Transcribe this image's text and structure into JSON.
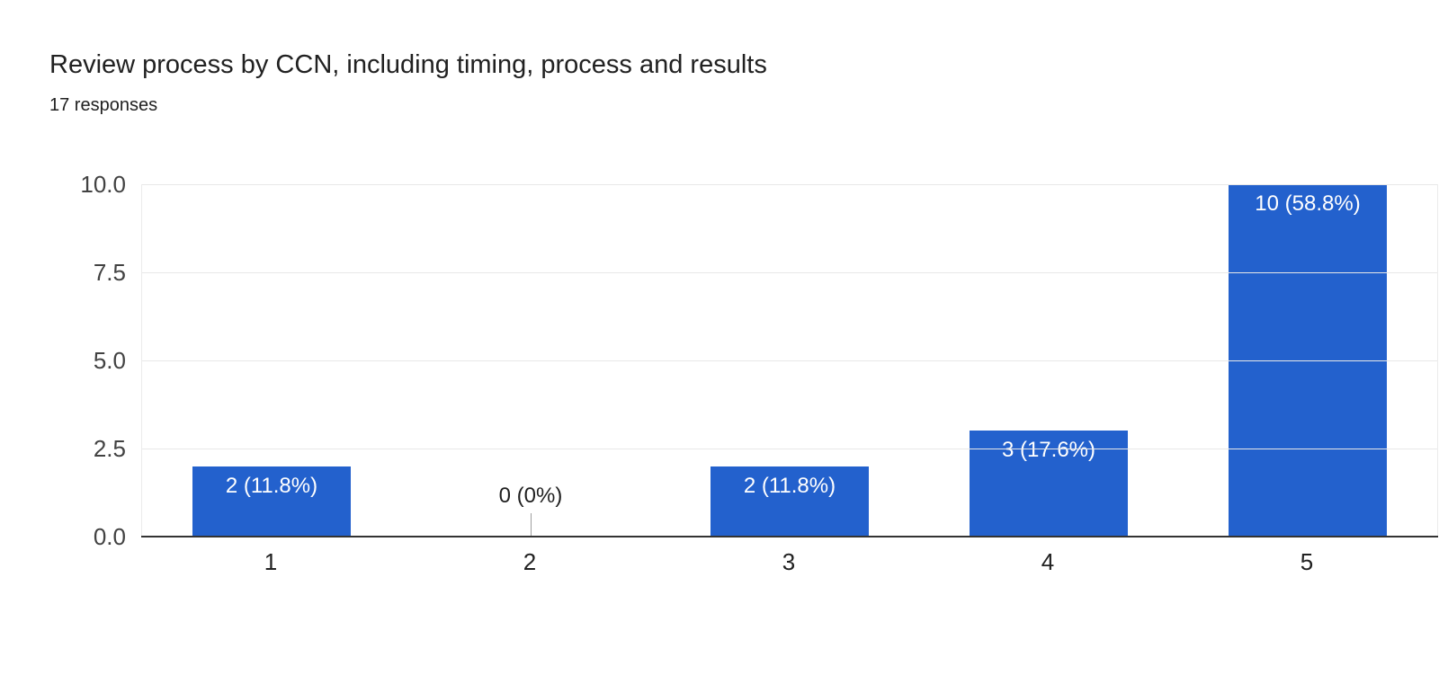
{
  "header": {
    "title": "Review process by CCN, including timing, process and results",
    "subtitle": "17 responses"
  },
  "chart_data": {
    "type": "bar",
    "title": "Review process by CCN, including timing, process and results",
    "subtitle": "17 responses",
    "total_responses": 17,
    "categories": [
      "1",
      "2",
      "3",
      "4",
      "5"
    ],
    "values": [
      2,
      0,
      2,
      3,
      10
    ],
    "bar_labels": [
      "2 (11.8%)",
      "0 (0%)",
      "2 (11.8%)",
      "3 (17.6%)",
      "10 (58.8%)"
    ],
    "percentages": [
      11.8,
      0,
      11.8,
      17.6,
      58.8
    ],
    "xlabel": "",
    "ylabel": "",
    "ylim": [
      0,
      10
    ],
    "yticks": [
      "0.0",
      "2.5",
      "5.0",
      "7.5",
      "10.0"
    ],
    "grid": true,
    "legend": "none",
    "colors": {
      "bar": "#2361cd",
      "bar_label": "#ffffff",
      "zero_label": "#212121",
      "gridline": "#e8e8e8",
      "baseline": "#333333",
      "y_tick_label": "#424242",
      "x_tick_label": "#212121",
      "zero_stub": "#9e9e9e",
      "background": "#ffffff"
    }
  }
}
